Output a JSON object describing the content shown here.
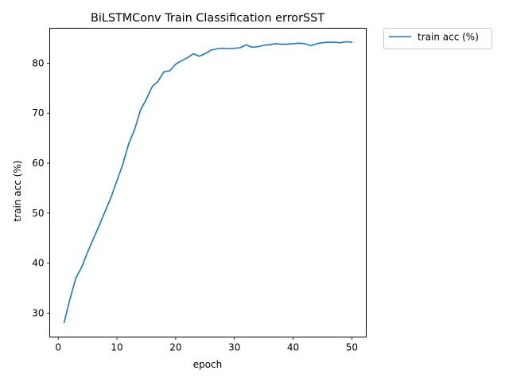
{
  "chart_data": {
    "type": "line",
    "title": "BiLSTMConv Train Classification errorSST",
    "xlabel": "epoch",
    "ylabel": "train acc (%)",
    "xlim": [
      -1.45,
      52.45
    ],
    "ylim": [
      25.2,
      87.0
    ],
    "xticks": [
      0,
      10,
      20,
      30,
      40,
      50
    ],
    "yticks": [
      30,
      40,
      50,
      60,
      70,
      80
    ],
    "grid": false,
    "legend_position": "outside-top-right",
    "series": [
      {
        "name": "train acc (%)",
        "color": "#1f77b4",
        "x": [
          1,
          2,
          3,
          4,
          5,
          6,
          7,
          8,
          9,
          10,
          11,
          12,
          13,
          14,
          15,
          16,
          17,
          18,
          19,
          20,
          21,
          22,
          23,
          24,
          25,
          26,
          27,
          28,
          29,
          30,
          31,
          32,
          33,
          34,
          35,
          36,
          37,
          38,
          39,
          40,
          41,
          42,
          43,
          44,
          45,
          46,
          47,
          48,
          49,
          50
        ],
        "y": [
          28.1,
          32.8,
          37.0,
          39.2,
          42.2,
          44.9,
          47.6,
          50.4,
          53.2,
          56.5,
          59.8,
          63.9,
          66.7,
          70.6,
          72.8,
          75.3,
          76.4,
          78.3,
          78.5,
          79.8,
          80.5,
          81.1,
          81.9,
          81.4,
          81.9,
          82.6,
          82.9,
          83.0,
          82.9,
          83.0,
          83.1,
          83.7,
          83.2,
          83.3,
          83.6,
          83.7,
          83.9,
          83.8,
          83.8,
          83.9,
          84.0,
          83.9,
          83.5,
          83.9,
          84.1,
          84.2,
          84.2,
          84.1,
          84.3,
          84.2
        ]
      }
    ]
  }
}
